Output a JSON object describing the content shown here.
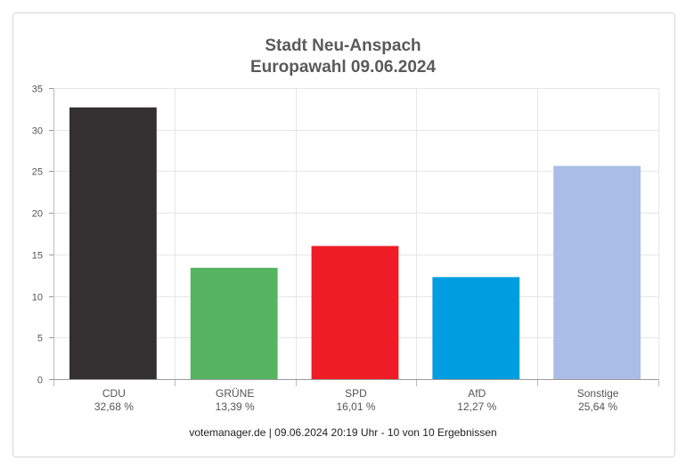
{
  "chart_data": {
    "type": "bar",
    "title": "Stadt Neu-Anspach",
    "subtitle": "Europawahl 09.06.2024",
    "categories": [
      "CDU",
      "GRÜNE",
      "SPD",
      "AfD",
      "Sonstige"
    ],
    "value_labels": [
      "32,68 %",
      "13,39 %",
      "16,01 %",
      "12,27 %",
      "25,64 %"
    ],
    "values": [
      32.68,
      13.39,
      16.01,
      12.27,
      25.64
    ],
    "colors": [
      "#323031",
      "#56b35f",
      "#ee1d25",
      "#009ee0",
      "#aabde6"
    ],
    "ylim": [
      0,
      35
    ],
    "yticks": [
      0,
      5,
      10,
      15,
      20,
      25,
      30,
      35
    ],
    "grid": true,
    "legend": "none"
  },
  "footer": "votemanager.de | 09.06.2024 20:19 Uhr - 10 von 10 Ergebnissen"
}
